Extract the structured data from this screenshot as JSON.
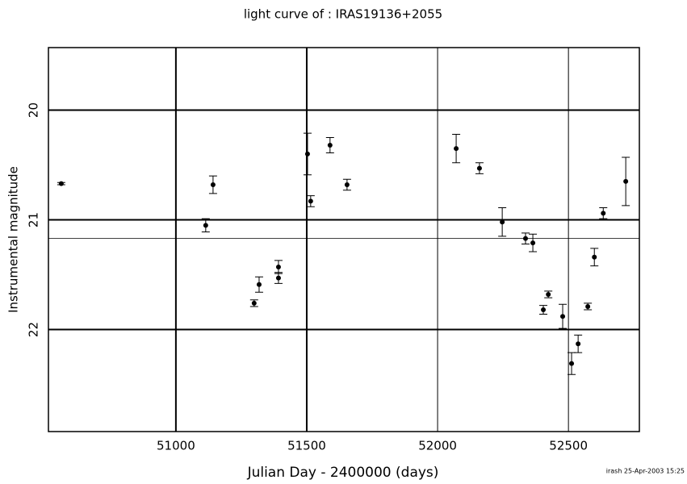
{
  "chart_data": {
    "type": "scatter",
    "title": "light curve of : IRAS19136+2055",
    "xlabel": "Julian Day - 2400000 (days)",
    "ylabel": "Instrumental magnitude",
    "footnote": "irash 25-Apr-2003 15:25",
    "x": [
      50562,
      51114,
      51142,
      51299,
      51318,
      51392,
      51392,
      51503,
      51515,
      51589,
      51654,
      52071,
      52160,
      52247,
      52336,
      52364,
      52404,
      52423,
      52478,
      52512,
      52537,
      52574,
      52599,
      52633,
      52719
    ],
    "values": [
      20.67,
      21.05,
      20.68,
      21.76,
      21.59,
      21.43,
      21.53,
      20.4,
      20.83,
      20.32,
      20.68,
      20.35,
      20.53,
      21.02,
      21.17,
      21.21,
      21.82,
      21.68,
      21.88,
      22.31,
      22.13,
      21.79,
      21.34,
      20.94,
      20.65
    ],
    "errors": [
      0.01,
      0.06,
      0.08,
      0.03,
      0.07,
      0.06,
      0.05,
      0.19,
      0.05,
      0.07,
      0.05,
      0.13,
      0.05,
      0.13,
      0.05,
      0.08,
      0.04,
      0.03,
      0.11,
      0.1,
      0.08,
      0.03,
      0.08,
      0.05,
      0.22
    ],
    "color": "#000000",
    "xlim": [
      50513,
      52771
    ],
    "xticks": [
      51000,
      51500,
      52000,
      52500
    ],
    "ylim": [
      19.43,
      22.93
    ],
    "yticks": [
      20,
      21,
      22
    ],
    "invert_y": true,
    "mean_line": 21.17,
    "grid": true
  }
}
